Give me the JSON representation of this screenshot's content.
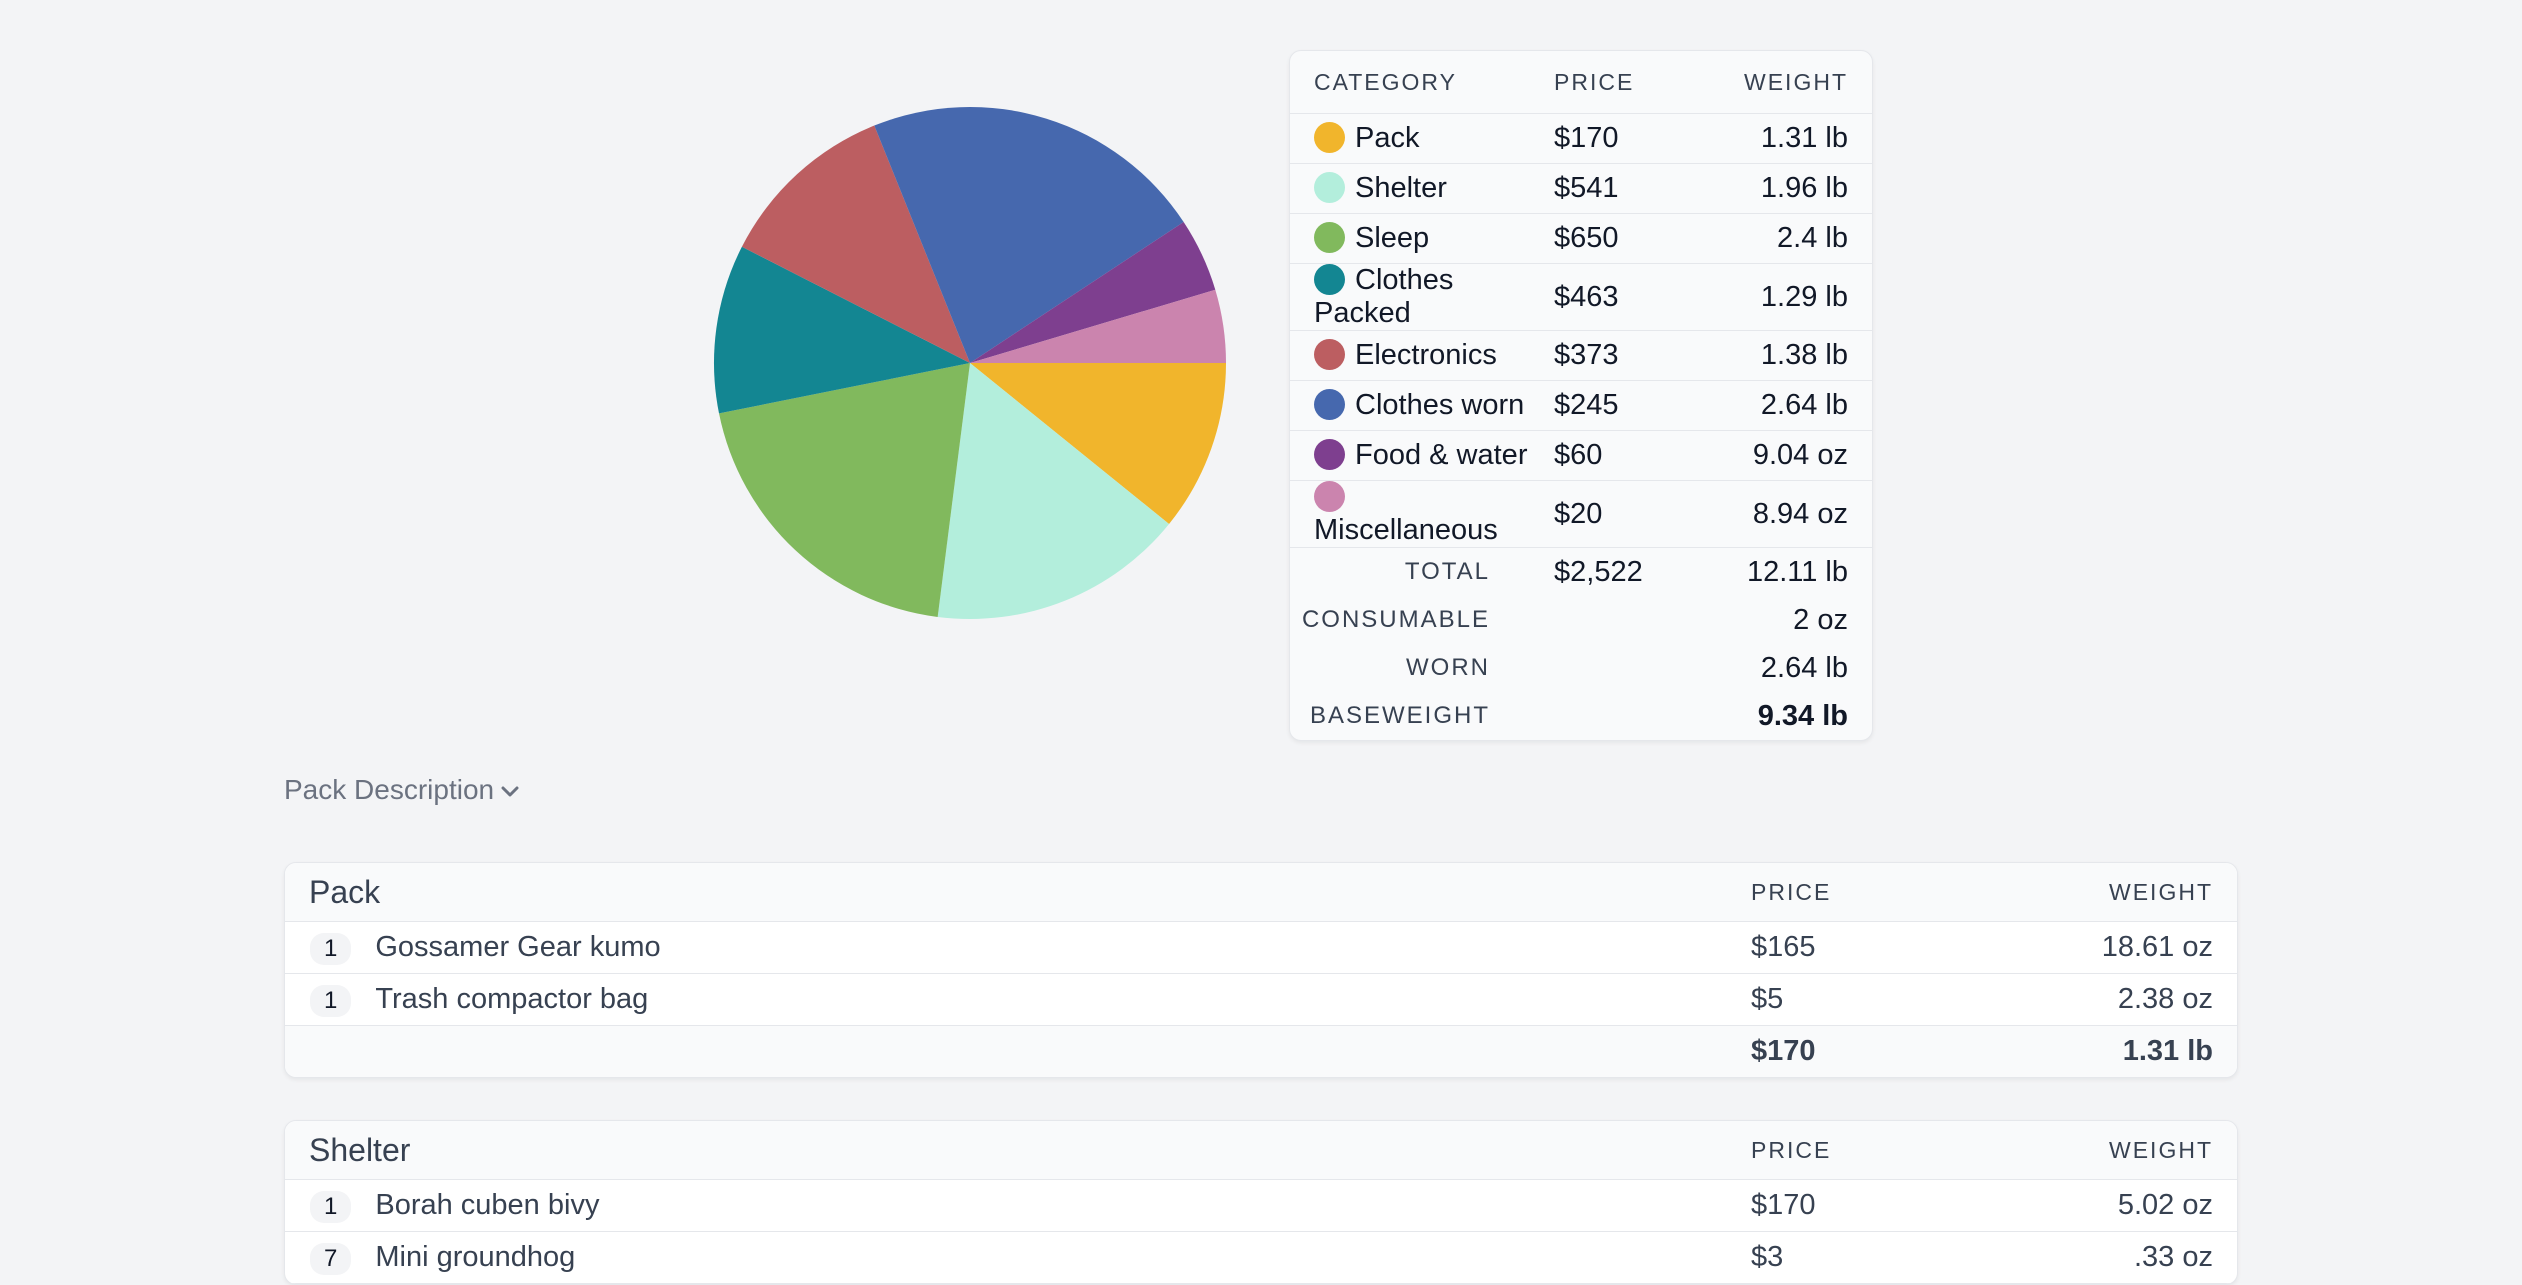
{
  "chart_data": {
    "type": "pie",
    "slices": [
      {
        "label": "Pack",
        "value": 1.31,
        "color": "#f1b52c"
      },
      {
        "label": "Shelter",
        "value": 1.96,
        "color": "#b3eedc"
      },
      {
        "label": "Sleep",
        "value": 2.4,
        "color": "#81b95d"
      },
      {
        "label": "Clothes Packed",
        "value": 1.29,
        "color": "#138692"
      },
      {
        "label": "Electronics",
        "value": 1.38,
        "color": "#bc5e61"
      },
      {
        "label": "Clothes worn",
        "value": 2.64,
        "color": "#4668ae"
      },
      {
        "label": "Food & water",
        "value": 0.565,
        "color": "#7e3f8f"
      },
      {
        "label": "Miscellaneous",
        "value": 0.559,
        "color": "#cb84ae"
      }
    ]
  },
  "summary": {
    "headers": {
      "category": "CATEGORY",
      "price": "PRICE",
      "weight": "WEIGHT"
    },
    "rows": [
      {
        "name": "Pack",
        "price": "$170",
        "weight": "1.31 lb",
        "color": "#f1b52c"
      },
      {
        "name": "Shelter",
        "price": "$541",
        "weight": "1.96 lb",
        "color": "#b3eedc"
      },
      {
        "name": "Sleep",
        "price": "$650",
        "weight": "2.4 lb",
        "color": "#81b95d"
      },
      {
        "name": "Clothes Packed",
        "price": "$463",
        "weight": "1.29 lb",
        "color": "#138692"
      },
      {
        "name": "Electronics",
        "price": "$373",
        "weight": "1.38 lb",
        "color": "#bc5e61"
      },
      {
        "name": "Clothes worn",
        "price": "$245",
        "weight": "2.64 lb",
        "color": "#4668ae"
      },
      {
        "name": "Food & water",
        "price": "$60",
        "weight": "9.04 oz",
        "color": "#7e3f8f"
      },
      {
        "name": "Miscellaneous",
        "price": "$20",
        "weight": "8.94 oz",
        "color": "#cb84ae"
      }
    ],
    "total": {
      "label": "TOTAL",
      "price": "$2,522",
      "weight": "12.11 lb"
    },
    "consumable": {
      "label": "CONSUMABLE",
      "weight": "2 oz"
    },
    "worn": {
      "label": "WORN",
      "weight": "2.64 lb"
    },
    "baseweight": {
      "label": "BASEWEIGHT",
      "weight": "9.34 lb"
    }
  },
  "pack_description": {
    "label": "Pack Description",
    "icon": "chevron-down-icon"
  },
  "categories": [
    {
      "name": "Pack",
      "price_header": "PRICE",
      "weight_header": "WEIGHT",
      "items": [
        {
          "qty": "1",
          "name": "Gossamer Gear kumo",
          "price": "$165",
          "weight": "18.61 oz"
        },
        {
          "qty": "1",
          "name": "Trash compactor bag",
          "price": "$5",
          "weight": "2.38 oz"
        }
      ],
      "total_price": "$170",
      "total_weight": "1.31 lb"
    },
    {
      "name": "Shelter",
      "price_header": "PRICE",
      "weight_header": "WEIGHT",
      "items": [
        {
          "qty": "1",
          "name": "Borah cuben bivy",
          "price": "$170",
          "weight": "5.02 oz"
        },
        {
          "qty": "7",
          "name": "Mini groundhog",
          "price": "$3",
          "weight": ".33 oz"
        }
      ]
    }
  ]
}
